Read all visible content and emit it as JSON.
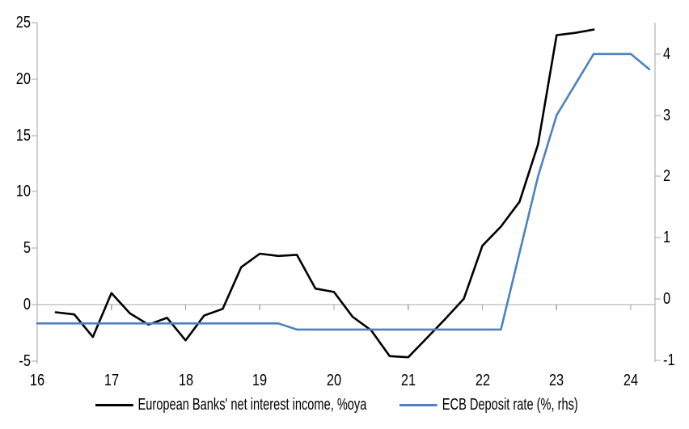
{
  "chart_data": {
    "type": "line",
    "title": "",
    "grid": false,
    "legend_position": "bottom",
    "colors": {
      "axis_gray": "#A6A6A6",
      "series_black": "#000000",
      "series_blue": "#4F81BD"
    },
    "axes": {
      "x": {
        "tick_labels": [
          "16",
          "17",
          "18",
          "19",
          "20",
          "21",
          "22",
          "23",
          "24"
        ],
        "range": [
          16,
          24.35
        ]
      },
      "left": {
        "tick_labels": [
          "25",
          "20",
          "15",
          "10",
          "5",
          "0",
          "-5"
        ],
        "tick_values": [
          25,
          20,
          15,
          10,
          5,
          0,
          -5
        ],
        "range": [
          -5,
          25
        ]
      },
      "right": {
        "tick_labels": [
          "4",
          "3",
          "2",
          "1",
          "0",
          "-1"
        ],
        "tick_values": [
          4,
          3,
          2,
          1,
          0,
          -1
        ],
        "range": [
          -1.1,
          4.5
        ]
      }
    },
    "series": [
      {
        "name": "European Banks' net interest income, %oya",
        "axis": "left",
        "color": "#000000",
        "x": [
          16.25,
          16.5,
          16.75,
          17,
          17.25,
          17.5,
          17.75,
          18,
          18.25,
          18.5,
          18.75,
          19,
          19.25,
          19.5,
          19.75,
          20,
          20.25,
          20.5,
          20.75,
          21,
          21.25,
          21.5,
          21.75,
          22,
          22.25,
          22.5,
          22.75,
          23,
          23.25,
          23.5
        ],
        "values": [
          -0.7,
          -0.9,
          -2.9,
          1.0,
          -0.8,
          -1.8,
          -1.2,
          -3.2,
          -1.0,
          -0.4,
          3.3,
          4.5,
          4.3,
          4.4,
          1.4,
          1.1,
          -1.1,
          -2.3,
          -4.6,
          -4.7,
          -3.0,
          -1.3,
          0.5,
          5.2,
          6.9,
          9.1,
          14.2,
          23.9,
          24.1,
          24.4
        ]
      },
      {
        "name": "ECB Deposit rate (%, rhs)",
        "axis": "right",
        "color": "#4F81BD",
        "x": [
          16,
          16.25,
          16.5,
          16.75,
          17,
          17.25,
          17.5,
          17.75,
          18,
          18.25,
          18.5,
          18.75,
          19,
          19.25,
          19.5,
          19.75,
          20,
          20.25,
          20.5,
          20.75,
          21,
          21.25,
          21.5,
          21.75,
          22,
          22.25,
          22.5,
          22.75,
          23,
          23.25,
          23.5,
          23.75,
          24,
          24.25
        ],
        "values": [
          -0.4,
          -0.4,
          -0.4,
          -0.4,
          -0.4,
          -0.4,
          -0.4,
          -0.4,
          -0.4,
          -0.4,
          -0.4,
          -0.4,
          -0.4,
          -0.4,
          -0.5,
          -0.5,
          -0.5,
          -0.5,
          -0.5,
          -0.5,
          -0.5,
          -0.5,
          -0.5,
          -0.5,
          -0.5,
          -0.5,
          0.75,
          2.0,
          3.0,
          3.5,
          4.0,
          4.0,
          4.0,
          3.75
        ]
      }
    ],
    "legend": {
      "items": [
        {
          "label": "European Banks' net interest income, %oya",
          "series_index": 0
        },
        {
          "label": "ECB Deposit rate (%, rhs)",
          "series_index": 1
        }
      ]
    }
  }
}
